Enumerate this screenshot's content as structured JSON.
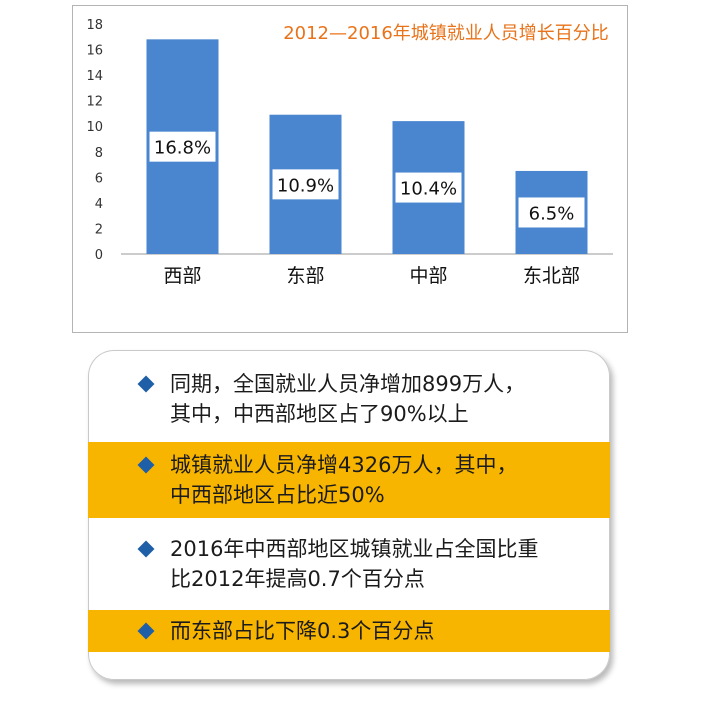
{
  "chart_data": {
    "type": "bar",
    "title": "2012—2016年城镇就业人员增长百分比",
    "categories": [
      "西部",
      "东部",
      "中部",
      "东北部"
    ],
    "values": [
      16.8,
      10.9,
      10.4,
      6.5
    ],
    "data_labels": [
      "16.8%",
      "10.9%",
      "10.4%",
      "6.5%"
    ],
    "yticks": [
      "0",
      "2",
      "4",
      "6",
      "8",
      "10",
      "12",
      "14",
      "16",
      "18"
    ],
    "ylim": [
      0,
      18
    ],
    "xlabel": "",
    "ylabel": "",
    "grid": false,
    "bar_color": "#4a86cf",
    "title_color": "#e8731a"
  },
  "info": {
    "items": [
      {
        "lines": [
          "同期，全国就业人员净增加899万人，",
          "其中，中西部地区占了90%以上"
        ],
        "highlight": false
      },
      {
        "lines": [
          "城镇就业人员净增4326万人，其中，",
          "中西部地区占比近50%"
        ],
        "highlight": true
      },
      {
        "lines": [
          "2016年中西部地区城镇就业占全国比重",
          "比2012年提高0.7个百分点"
        ],
        "highlight": false
      },
      {
        "lines": [
          "而东部占比下降0.3个百分点"
        ],
        "highlight": true
      }
    ],
    "bullet_color": "#1f5fa8",
    "highlight_color": "#f8b500"
  }
}
